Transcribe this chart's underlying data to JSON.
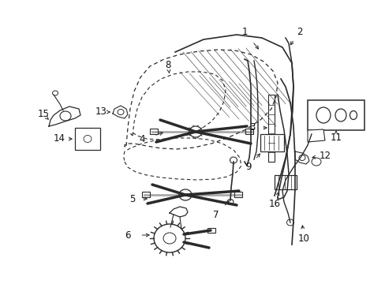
{
  "bg_color": "#ffffff",
  "fig_width": 4.89,
  "fig_height": 3.6,
  "dpi": 100,
  "line_color": "#2a2a2a",
  "text_color": "#111111",
  "font_size": 8.5
}
